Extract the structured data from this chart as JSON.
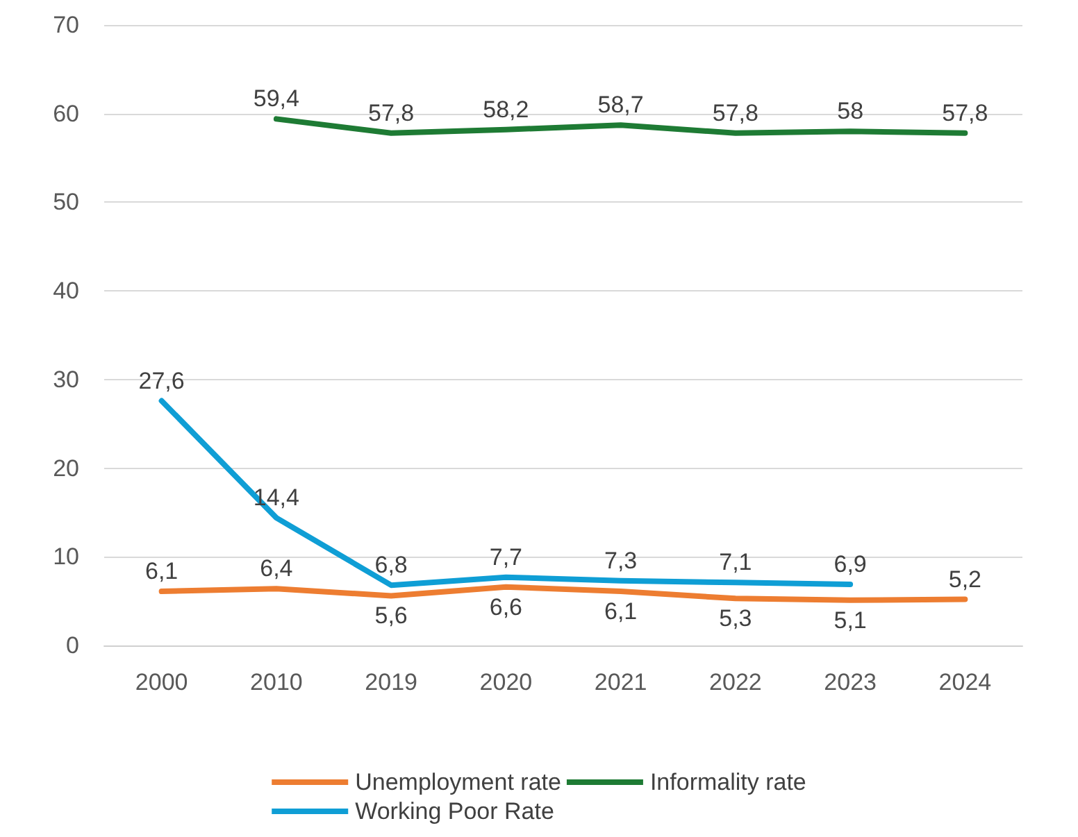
{
  "chart_data": {
    "type": "line",
    "categories": [
      "2000",
      "2010",
      "2019",
      "2020",
      "2021",
      "2022",
      "2023",
      "2024"
    ],
    "series": [
      {
        "name": "Unemployment rate",
        "color": "#ed7d31",
        "values": [
          6.1,
          6.4,
          5.6,
          6.6,
          6.1,
          5.3,
          5.1,
          5.2
        ],
        "value_labels": [
          "6,1",
          "6,4",
          "5,6",
          "6,6",
          "6,1",
          "5,3",
          "5,1",
          "5,2"
        ]
      },
      {
        "name": "Informality rate",
        "color": "#1e7b34",
        "values": [
          null,
          59.4,
          57.8,
          58.2,
          58.7,
          57.8,
          58,
          57.8
        ],
        "value_labels": [
          null,
          "59,4",
          "57,8",
          "58,2",
          "58,7",
          "57,8",
          "58",
          "57,8"
        ]
      },
      {
        "name": "Working Poor Rate",
        "color": "#0f9ed5",
        "values": [
          27.6,
          14.4,
          6.8,
          7.7,
          7.3,
          7.1,
          6.9,
          null
        ],
        "value_labels": [
          "27,6",
          "14,4",
          "6,8",
          "7,7",
          "7,3",
          "7,1",
          "6,9",
          null
        ]
      }
    ],
    "ylim": [
      0,
      70
    ],
    "yticks": [
      0,
      10,
      20,
      30,
      40,
      50,
      60,
      70
    ],
    "grid": "y",
    "legend": "bottom",
    "marker": "none",
    "line_style": "solid"
  }
}
